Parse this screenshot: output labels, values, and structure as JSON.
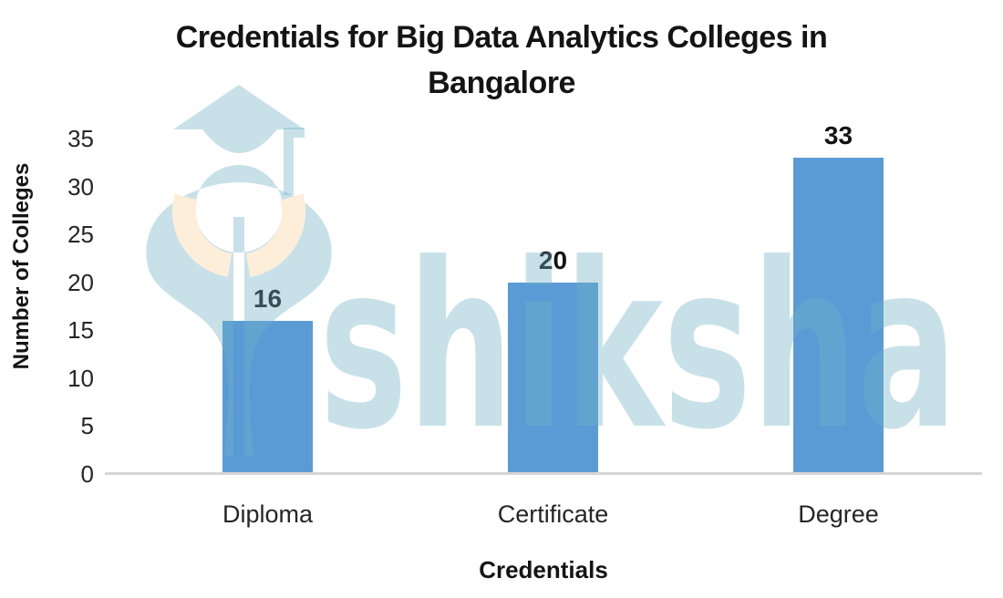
{
  "title": {
    "line1": "Credentials for Big Data Analytics Colleges in",
    "line2": "Bangalore"
  },
  "chart_data": {
    "type": "bar",
    "title": "Credentials for Big Data Analytics Colleges in Bangalore",
    "categories": [
      "Diploma",
      "Certificate",
      "Degree"
    ],
    "values": [
      16,
      20,
      33
    ],
    "data_labels": [
      "16",
      "20",
      "33"
    ],
    "xlabel": "Credentials",
    "ylabel": "Number of Colleges",
    "ylim": [
      0,
      35
    ],
    "yticks": [
      0,
      5,
      10,
      15,
      20,
      25,
      30,
      35
    ],
    "grid": false,
    "legend": "none",
    "bar_color": "#5b9bd5",
    "axis_line_color": "#d6d6d6",
    "text_color": "#141414"
  },
  "watermark": {
    "text": "shiksha",
    "icon": "graduate-cap-figure",
    "teal_color": "#6eafc5",
    "collar_color": "#fdeeda"
  }
}
